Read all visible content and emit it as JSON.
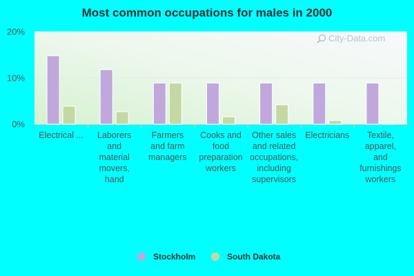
{
  "chart_data": {
    "type": "bar",
    "title": "Most common occupations for males in 2000",
    "xlabel": "",
    "ylabel": "",
    "ylim": [
      0,
      20
    ],
    "yticks": [
      {
        "value": 0,
        "label": "0%"
      },
      {
        "value": 10,
        "label": "10%"
      },
      {
        "value": 20,
        "label": "20%"
      }
    ],
    "grid": true,
    "legend_position": "bottom-center",
    "categories": [
      [
        "Electrical ..."
      ],
      [
        "Laborers",
        "and",
        "material",
        "movers,",
        "hand"
      ],
      [
        "Farmers",
        "and farm",
        "managers"
      ],
      [
        "Cooks and",
        "food",
        "preparation",
        "workers"
      ],
      [
        "Other sales",
        "and related",
        "occupations,",
        "including",
        "supervisors"
      ],
      [
        "Electricians"
      ],
      [
        "Textile,",
        "apparel,",
        "and",
        "furnishings",
        "workers"
      ]
    ],
    "series": [
      {
        "name": "Stockholm",
        "color": "#c0a8dc",
        "values": [
          14.8,
          11.8,
          8.9,
          8.9,
          8.9,
          8.9,
          8.9
        ]
      },
      {
        "name": "South Dakota",
        "color": "#c4d8a4",
        "values": [
          3.9,
          2.7,
          8.9,
          1.6,
          4.2,
          0.8,
          0.2
        ]
      }
    ]
  },
  "watermark": "City-Data.com",
  "watermark_icon": "magnifier-icon"
}
